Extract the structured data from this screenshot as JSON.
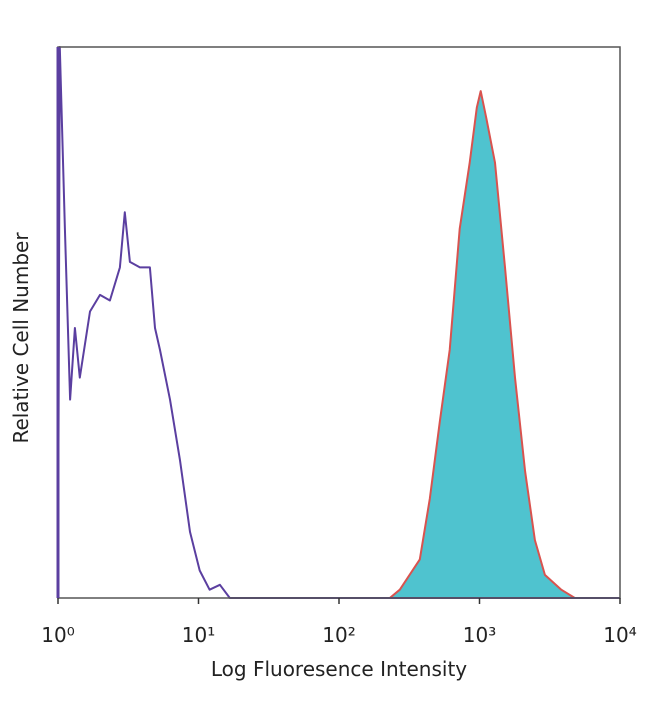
{
  "chart_data": {
    "type": "histogram-overlay",
    "x_label": "Log Fluoresence Intensity",
    "y_label": "Relative Cell Number",
    "xlog": true,
    "xlim": [
      1,
      10000
    ],
    "ylim": [
      0,
      100
    ],
    "xticks": [
      {
        "value": 1,
        "label": "10⁰"
      },
      {
        "value": 10,
        "label": "10¹"
      },
      {
        "value": 100,
        "label": "10²"
      },
      {
        "value": 1000,
        "label": "10³"
      },
      {
        "value": 10000,
        "label": "10⁴"
      }
    ],
    "series": [
      {
        "color": "#4fc3cf",
        "edge_color": "#d9534f",
        "filled": true,
        "x": [
          230,
          271,
          376,
          443,
          522,
          614,
          723,
          851,
          957,
          1020,
          1120,
          1290,
          1520,
          1790,
          2110,
          2480,
          2920,
          3820,
          4770
        ],
        "values": [
          0,
          1.5,
          7,
          18,
          32,
          45,
          67,
          79,
          89,
          92,
          87,
          79,
          60,
          40,
          23,
          10.5,
          4.2,
          1.5,
          0
        ]
      },
      {
        "color": "#5b3fa0",
        "filled": false,
        "x": [
          1,
          1.03,
          1.12,
          1.22,
          1.32,
          1.43,
          1.69,
          1.99,
          2.34,
          2.76,
          2.99,
          3.25,
          3.83,
          4.51,
          4.9,
          5.32,
          6.27,
          7.39,
          8.7,
          10.2,
          12,
          14.2,
          16.7,
          10000
        ],
        "values": [
          0,
          100,
          67,
          36,
          49,
          40,
          52,
          55,
          54,
          60,
          70,
          61,
          60,
          60,
          49,
          45,
          36,
          25,
          12,
          5,
          1.5,
          2.4,
          0,
          0
        ]
      }
    ]
  }
}
